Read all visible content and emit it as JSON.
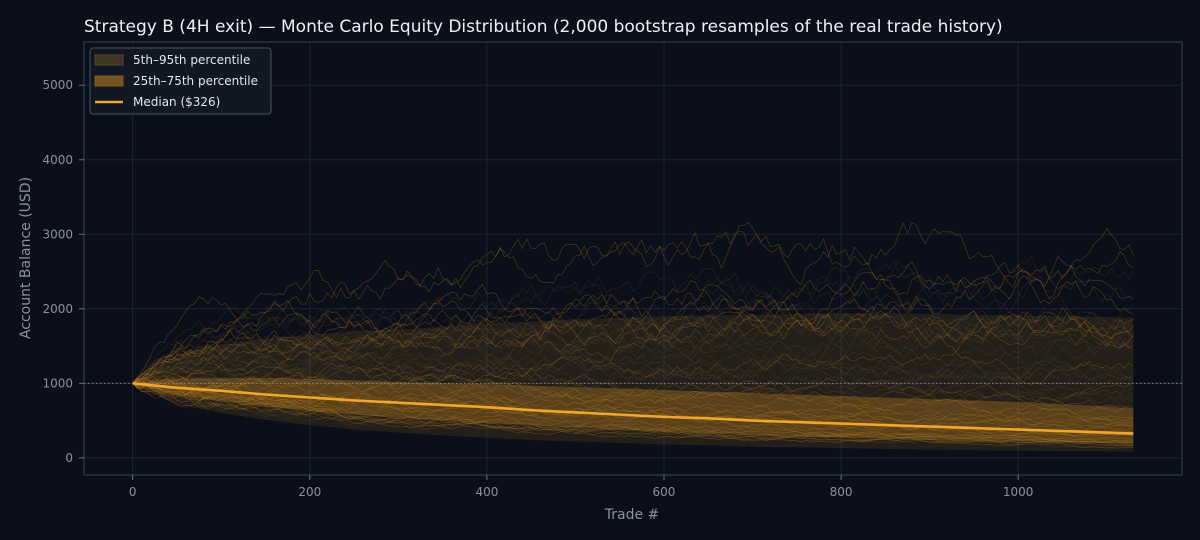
{
  "chart_data": {
    "type": "line",
    "title": "Strategy B (4H exit) — Monte Carlo Equity Distribution (2,000 bootstrap resamples of the real trade history)",
    "xlabel": "Trade #",
    "ylabel": "Account Balance (USD)",
    "xlim": [
      -55,
      1185
    ],
    "ylim": [
      -230,
      5580
    ],
    "xticks": [
      0,
      200,
      400,
      600,
      800,
      1000
    ],
    "yticks": [
      0,
      1000,
      2000,
      3000,
      4000,
      5000
    ],
    "grid": true,
    "legend_position": "top-left",
    "reference_line": {
      "y": 1000,
      "style": "dotted"
    },
    "colors": {
      "background": "#0b0f19",
      "accent": "#f5a623",
      "band_outer": "#7a5a20",
      "band_inner": "#c8861e",
      "grid": "#1e2433",
      "axis": "#3a4050"
    },
    "legend": [
      {
        "label": "5th–95th percentile",
        "kind": "band_outer"
      },
      {
        "label": "25th–75th percentile",
        "kind": "band_inner"
      },
      {
        "label": "Median ($326)",
        "kind": "line"
      }
    ],
    "x": [
      0,
      50,
      100,
      150,
      200,
      250,
      300,
      350,
      400,
      450,
      500,
      550,
      600,
      650,
      700,
      750,
      800,
      850,
      900,
      950,
      1000,
      1050,
      1100,
      1130
    ],
    "series": [
      {
        "name": "Median ($326)",
        "values": [
          1000,
          940,
          900,
          850,
          810,
          770,
          740,
          710,
          680,
          640,
          610,
          580,
          550,
          530,
          500,
          480,
          460,
          440,
          420,
          400,
          380,
          360,
          340,
          326
        ]
      },
      {
        "name": "25th percentile",
        "values": [
          1000,
          840,
          760,
          690,
          630,
          580,
          540,
          500,
          470,
          440,
          410,
          380,
          350,
          330,
          310,
          290,
          270,
          260,
          240,
          230,
          220,
          210,
          200,
          190
        ]
      },
      {
        "name": "75th percentile",
        "values": [
          1000,
          1060,
          1070,
          1070,
          1060,
          1040,
          1020,
          1000,
          990,
          970,
          950,
          930,
          910,
          890,
          870,
          850,
          830,
          810,
          790,
          770,
          750,
          720,
          690,
          660
        ]
      },
      {
        "name": "5th percentile",
        "values": [
          1000,
          720,
          600,
          510,
          440,
          380,
          340,
          300,
          270,
          240,
          220,
          200,
          180,
          170,
          150,
          140,
          130,
          120,
          110,
          100,
          95,
          90,
          85,
          80
        ]
      },
      {
        "name": "95th percentile",
        "values": [
          1000,
          1380,
          1520,
          1600,
          1650,
          1700,
          1720,
          1760,
          1800,
          1830,
          1860,
          1880,
          1900,
          1910,
          1920,
          1930,
          1940,
          1940,
          1930,
          1920,
          1910,
          1900,
          1890,
          1880
        ]
      }
    ]
  }
}
